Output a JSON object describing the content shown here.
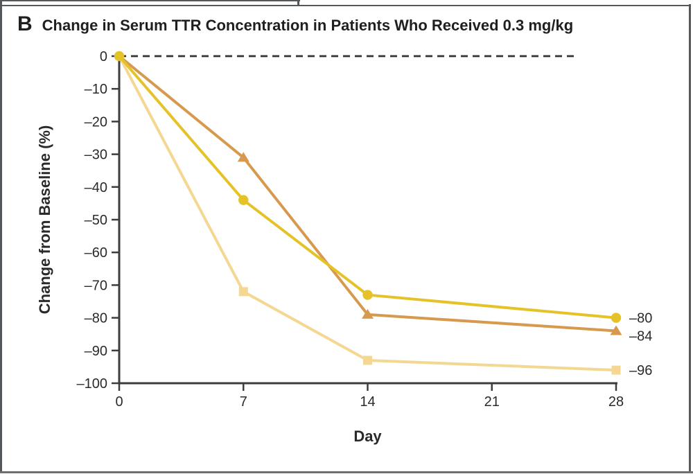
{
  "panel": {
    "letter": "B",
    "title": "Change in Serum TTR Concentration in Patients Who Received 0.3 mg/kg"
  },
  "chart_data": {
    "type": "line",
    "title": "Change in Serum TTR Concentration in Patients Who Received 0.3 mg/kg",
    "xlabel": "Day",
    "ylabel": "Change from Baseline (%)",
    "xlim": [
      0,
      28
    ],
    "ylim": [
      -100,
      0
    ],
    "grid": false,
    "legend": "none (direct end-of-line value labels)",
    "baseline": {
      "y": 0,
      "style": "dashed",
      "color": "#333333"
    },
    "x_ticks": [
      {
        "value": 0,
        "label": "0"
      },
      {
        "value": 7,
        "label": "7"
      },
      {
        "value": 14,
        "label": "14"
      },
      {
        "value": 21,
        "label": "21"
      },
      {
        "value": 28,
        "label": "28"
      }
    ],
    "y_ticks": [
      {
        "value": 0,
        "label": "0"
      },
      {
        "value": -10,
        "label": "–10"
      },
      {
        "value": -20,
        "label": "–20"
      },
      {
        "value": -30,
        "label": "–30"
      },
      {
        "value": -40,
        "label": "–40"
      },
      {
        "value": -50,
        "label": "–50"
      },
      {
        "value": -60,
        "label": "–60"
      },
      {
        "value": -70,
        "label": "–70"
      },
      {
        "value": -80,
        "label": "–80"
      },
      {
        "value": -90,
        "label": "–90"
      },
      {
        "value": -100,
        "label": "–100"
      }
    ],
    "series": [
      {
        "name": "series-1",
        "marker": "circle",
        "color": "#e6c229",
        "x": [
          0,
          7,
          14,
          28
        ],
        "y": [
          0,
          -44,
          -73,
          -80
        ],
        "end_label": "–80",
        "label_offset": 0,
        "origin_marker": true
      },
      {
        "name": "series-2",
        "marker": "triangle",
        "color": "#d7994d",
        "x": [
          0,
          7,
          14,
          28
        ],
        "y": [
          0,
          -31,
          -79,
          -84
        ],
        "end_label": "–84",
        "label_offset": 7,
        "origin_marker": false
      },
      {
        "name": "series-3",
        "marker": "square",
        "color": "#f4d792",
        "x": [
          0,
          7,
          14,
          28
        ],
        "y": [
          0,
          -72,
          -93,
          -96
        ],
        "end_label": "–96",
        "label_offset": 0,
        "origin_marker": false
      }
    ]
  },
  "colors": {
    "axis": "#3d3d3d",
    "text": "#2a2a2a",
    "frame": "#55585a",
    "bottom_rule": "#6e6e6e"
  }
}
